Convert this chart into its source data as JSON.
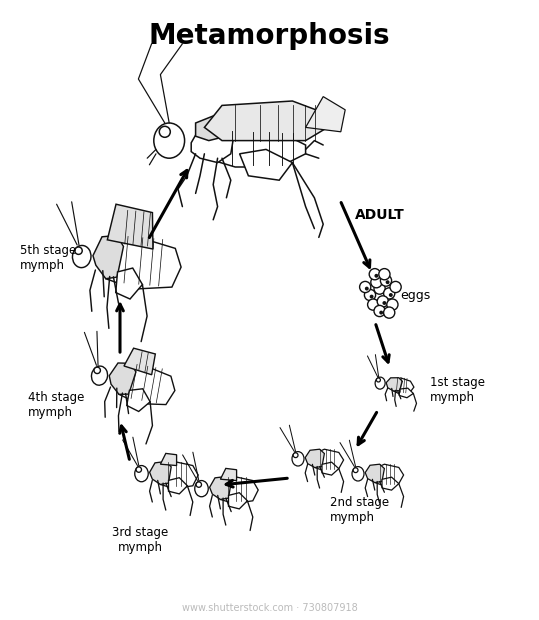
{
  "title": "Metamorphosis",
  "title_fontsize": 20,
  "title_fontweight": "bold",
  "background_color": "#ffffff",
  "text_color": "#000000",
  "label_adult": "ADULT",
  "label_eggs": "eggs",
  "label_1st": "1st stage\nmymph",
  "label_2nd": "2nd stage\nmymph",
  "label_3rd": "3rd stage\nmymph",
  "label_4th": "4th stage\nmymph",
  "label_5th": "5th stage\nmymph",
  "watermark": "www.shutterstock.com · 730807918",
  "watermark_color": "#bbbbbb",
  "watermark_fontsize": 7,
  "arrow_color": "#000000",
  "arrow_lw": 2.0,
  "insect_color": "#111111",
  "insect_lw": 0.9
}
